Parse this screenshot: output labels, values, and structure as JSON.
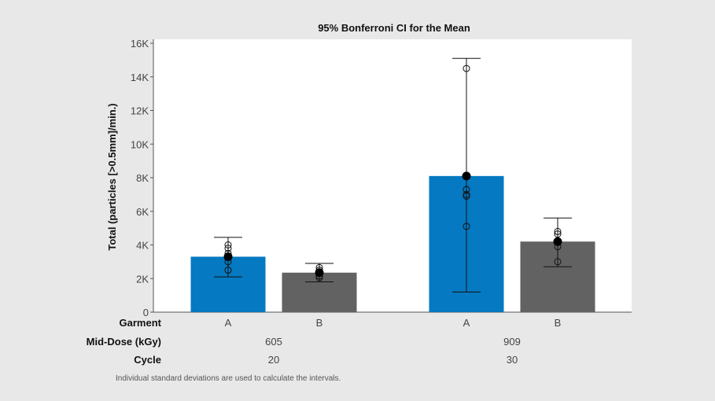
{
  "chart_data": {
    "type": "bar",
    "title": "95% Bonferroni CI for the Mean",
    "ylabel": "Total (particles [>0.5mm]/min.)",
    "ylim": [
      0,
      16000
    ],
    "yticks": [
      {
        "value": 0,
        "label": "0"
      },
      {
        "value": 2000,
        "label": "2K"
      },
      {
        "value": 4000,
        "label": "4K"
      },
      {
        "value": 6000,
        "label": "6K"
      },
      {
        "value": 8000,
        "label": "8K"
      },
      {
        "value": 10000,
        "label": "10K"
      },
      {
        "value": 12000,
        "label": "12K"
      },
      {
        "value": 14000,
        "label": "14K"
      },
      {
        "value": 16000,
        "label": "16K"
      }
    ],
    "row_labels": {
      "garment": "Garment",
      "dose": "Mid-Dose (kGy)",
      "cycle": "Cycle"
    },
    "groups": [
      {
        "dose": "605",
        "cycle": "20",
        "bars": [
          {
            "garment": "A",
            "mean": 3300,
            "ci_low": 2100,
            "ci_high": 4450,
            "color": "#0579c1",
            "points": [
              2500,
              3000,
              3500,
              3800,
              4000
            ]
          },
          {
            "garment": "B",
            "mean": 2350,
            "ci_low": 1800,
            "ci_high": 2900,
            "color": "#626262",
            "points": [
              2050,
              2150,
              2350,
              2500,
              2650
            ]
          }
        ]
      },
      {
        "dose": "909",
        "cycle": "30",
        "bars": [
          {
            "garment": "A",
            "mean": 8100,
            "ci_low": 1200,
            "ci_high": 15100,
            "color": "#0579c1",
            "points": [
              5100,
              6900,
              7000,
              7300,
              14500
            ]
          },
          {
            "garment": "B",
            "mean": 4200,
            "ci_low": 2700,
            "ci_high": 5600,
            "color": "#626262",
            "points": [
              3000,
              3900,
              4200,
              4650,
              4800
            ]
          }
        ]
      }
    ],
    "footnote": "Individual standard deviations are used to calculate the intervals.",
    "colors": {
      "blue": "#0579c1",
      "gray": "#626262",
      "plot_bg": "#ffffff",
      "page_bg": "#e8e8e8"
    }
  }
}
